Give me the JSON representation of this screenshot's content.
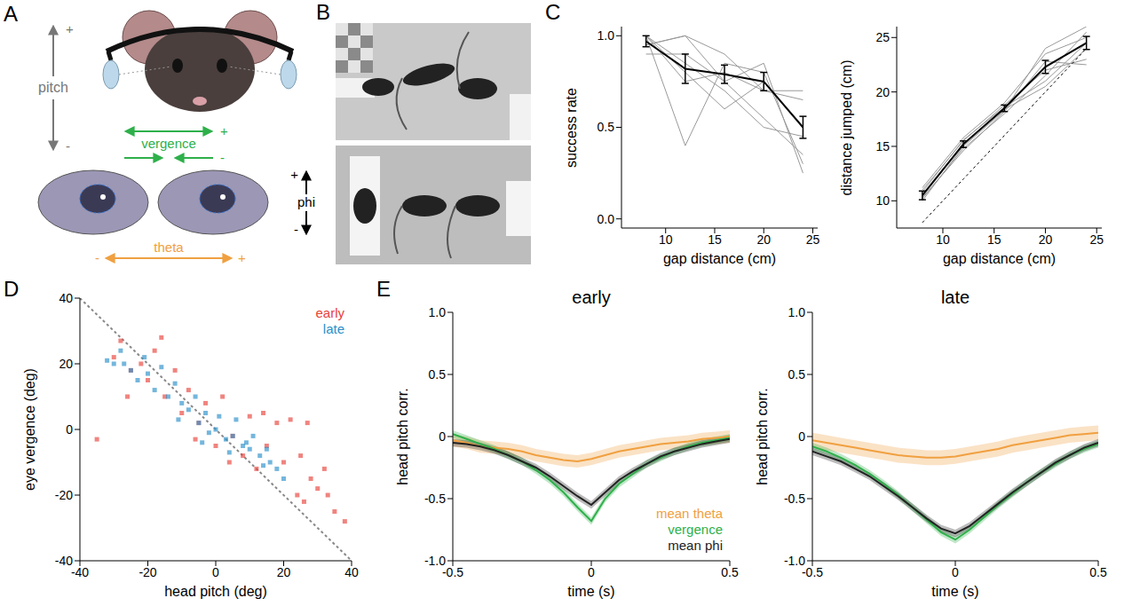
{
  "diagram": {
    "A": {
      "panel_label": "A",
      "labels": {
        "pitch": "pitch",
        "vergence": "vergence",
        "phi": "phi",
        "theta": "theta",
        "plus": "+",
        "minus": "-"
      }
    },
    "B": {
      "panel_label": "B"
    }
  },
  "chart_data": [
    {
      "panel_label": "C",
      "type": "line",
      "x_label": "gap distance (cm)",
      "y_label": "success rate",
      "x": [
        8,
        12,
        16,
        20,
        24
      ],
      "xlim": [
        5.5,
        25.5
      ],
      "xticks": [
        10,
        15,
        20,
        25
      ],
      "ylim": [
        -0.05,
        1.05
      ],
      "yticks": [
        {
          "value": 0,
          "label": "0.0"
        },
        0.5,
        {
          "value": 1,
          "label": "1.0"
        }
      ],
      "series": [
        {
          "color": "#999999",
          "values": [
            1.0,
            0.4,
            0.85,
            0.8,
            0.3
          ]
        },
        {
          "color": "#999999",
          "values": [
            0.95,
            1.0,
            0.9,
            0.7,
            0.65
          ]
        },
        {
          "color": "#999999",
          "values": [
            1.0,
            0.8,
            0.6,
            0.75,
            0.5
          ]
        },
        {
          "color": "#999999",
          "values": [
            0.9,
            0.9,
            0.75,
            0.85,
            0.25
          ]
        },
        {
          "color": "#999999",
          "values": [
            1.0,
            0.75,
            0.8,
            0.7,
            0.7
          ]
        },
        {
          "color": "#999999",
          "values": [
            0.95,
            1.0,
            0.75,
            0.55,
            0.35
          ]
        },
        {
          "color": "#999999",
          "values": [
            1.0,
            0.85,
            0.7,
            0.5,
            0.45
          ]
        },
        {
          "color": "#000000",
          "values": [
            0.97,
            0.82,
            0.79,
            0.75,
            0.5
          ],
          "errors": [
            0.03,
            0.08,
            0.05,
            0.05,
            0.06
          ]
        }
      ]
    },
    {
      "type": "line",
      "x_label": "gap distance (cm)",
      "y_label": "distance jumped (cm)",
      "x": [
        8,
        12,
        16,
        20,
        24
      ],
      "xlim": [
        5.5,
        25.5
      ],
      "xticks": [
        10,
        15,
        20,
        25
      ],
      "ylim": [
        7.5,
        26
      ],
      "yticks": [
        10,
        15,
        20,
        25
      ],
      "series": [
        {
          "color": "#999999",
          "values": [
            10.2,
            14.8,
            18.0,
            21.5,
            25.5
          ]
        },
        {
          "color": "#999999",
          "values": [
            11.0,
            15.5,
            18.8,
            22.0,
            23.0
          ]
        },
        {
          "color": "#999999",
          "values": [
            10.0,
            15.0,
            18.3,
            24.0,
            26.0
          ]
        },
        {
          "color": "#999999",
          "values": [
            10.8,
            15.6,
            18.6,
            21.0,
            24.5
          ]
        },
        {
          "color": "#999999",
          "values": [
            10.3,
            14.6,
            18.2,
            22.8,
            22.5
          ]
        },
        {
          "color": "#999999",
          "values": [
            11.2,
            15.8,
            19.0,
            23.5,
            25.0
          ]
        },
        {
          "color": "#999999",
          "values": [
            10.4,
            15.2,
            18.4,
            20.5,
            24.0
          ]
        },
        {
          "color": "#000000",
          "line_style": "dotted",
          "values": [
            8,
            12,
            16,
            20,
            24
          ]
        },
        {
          "color": "#000000",
          "values": [
            10.5,
            15.2,
            18.5,
            22.3,
            24.5
          ],
          "errors": [
            0.4,
            0.3,
            0.3,
            0.6,
            0.6
          ]
        }
      ]
    },
    {
      "panel_label": "D",
      "type": "scatter",
      "x_label": "head pitch (deg)",
      "y_label": "eye vergence (deg)",
      "xlim": [
        -40,
        40
      ],
      "xticks": [
        -40,
        -20,
        0,
        20,
        40
      ],
      "ylim": [
        -40,
        40
      ],
      "yticks": [
        -40,
        -20,
        0,
        20,
        40
      ],
      "legend": "upper right",
      "reference_line": {
        "x": [
          -40,
          40
        ],
        "y": [
          40,
          -40
        ],
        "line_style": "dotted",
        "color": "#888888"
      },
      "series": [
        {
          "name": "early",
          "color": "#e8423a",
          "marker": "square",
          "x": [
            -30,
            -28,
            -25,
            -22,
            -20,
            -18,
            -15,
            -12,
            -10,
            -8,
            -5,
            -3,
            0,
            2,
            5,
            8,
            10,
            12,
            15,
            18,
            20,
            22,
            24,
            25,
            27,
            28,
            30,
            32,
            35,
            38,
            -35,
            -26,
            -16,
            -6,
            4,
            14,
            26,
            33
          ],
          "y": [
            22,
            27,
            18,
            20,
            15,
            24,
            10,
            18,
            5,
            12,
            2,
            8,
            -5,
            10,
            -2,
            -8,
            4,
            -12,
            -5,
            2,
            -10,
            3,
            -20,
            -8,
            2,
            -15,
            -18,
            -12,
            -25,
            -28,
            -3,
            10,
            28,
            -3,
            -10,
            5,
            -22,
            -20
          ]
        },
        {
          "name": "late",
          "color": "#2a8fc9",
          "marker": "square",
          "x": [
            -32,
            -30,
            -28,
            -25,
            -23,
            -20,
            -18,
            -16,
            -14,
            -12,
            -10,
            -8,
            -6,
            -5,
            -3,
            -2,
            0,
            1,
            3,
            5,
            6,
            8,
            10,
            11,
            13,
            15,
            16,
            18,
            20,
            -27,
            -21,
            -11,
            -4,
            4,
            9,
            14
          ],
          "y": [
            21,
            20,
            24,
            18,
            15,
            17,
            12,
            19,
            10,
            14,
            8,
            6,
            10,
            2,
            5,
            -1,
            0,
            4,
            -3,
            -2,
            3,
            -5,
            -6,
            -2,
            -8,
            -6,
            -10,
            -12,
            -15,
            20,
            22,
            3,
            -4,
            -7,
            -4,
            -11
          ]
        }
      ]
    },
    {
      "panel_label": "E",
      "type": "line",
      "title": "early",
      "x_label": "time (s)",
      "y_label": "head pitch corr.",
      "legend": "lower right",
      "x": [
        -0.5,
        -0.45,
        -0.4,
        -0.35,
        -0.3,
        -0.25,
        -0.2,
        -0.15,
        -0.1,
        -0.05,
        0,
        0.05,
        0.1,
        0.15,
        0.2,
        0.25,
        0.3,
        0.35,
        0.4,
        0.45,
        0.5
      ],
      "xlim": [
        -0.5,
        0.5
      ],
      "xticks": [
        -0.5,
        0,
        0.5
      ],
      "ylim": [
        -1,
        1
      ],
      "yticks": [
        {
          "value": -1,
          "label": "-1.0"
        },
        -0.5,
        0,
        0.5,
        {
          "value": 1,
          "label": "1.0"
        }
      ],
      "series": [
        {
          "name": "mean theta",
          "color": "#f0a040",
          "values": [
            -0.03,
            -0.05,
            -0.08,
            -0.09,
            -0.1,
            -0.12,
            -0.15,
            -0.17,
            -0.19,
            -0.2,
            -0.18,
            -0.15,
            -0.12,
            -0.1,
            -0.08,
            -0.06,
            -0.05,
            -0.04,
            -0.02,
            -0.01,
            0.0
          ],
          "errors": [
            0.05,
            0.05,
            0.05,
            0.05,
            0.05,
            0.05,
            0.05,
            0.05,
            0.05,
            0.05,
            0.05,
            0.05,
            0.05,
            0.05,
            0.05,
            0.05,
            0.05,
            0.05,
            0.05,
            0.05,
            0.05
          ]
        },
        {
          "name": "vergence",
          "color": "#2eb04a",
          "values": [
            0.02,
            -0.02,
            -0.06,
            -0.1,
            -0.15,
            -0.2,
            -0.27,
            -0.35,
            -0.45,
            -0.57,
            -0.68,
            -0.5,
            -0.38,
            -0.3,
            -0.22,
            -0.17,
            -0.12,
            -0.08,
            -0.05,
            -0.03,
            -0.01
          ],
          "errors": [
            0.03,
            0.03,
            0.03,
            0.03,
            0.03,
            0.03,
            0.03,
            0.03,
            0.03,
            0.03,
            0.03,
            0.03,
            0.03,
            0.03,
            0.03,
            0.03,
            0.03,
            0.03,
            0.03,
            0.03,
            0.03
          ]
        },
        {
          "name": "mean phi",
          "color": "#222222",
          "values": [
            -0.05,
            -0.06,
            -0.08,
            -0.11,
            -0.15,
            -0.2,
            -0.25,
            -0.32,
            -0.4,
            -0.48,
            -0.55,
            -0.45,
            -0.35,
            -0.28,
            -0.22,
            -0.16,
            -0.12,
            -0.09,
            -0.06,
            -0.04,
            -0.02
          ],
          "errors": [
            0.03,
            0.03,
            0.03,
            0.03,
            0.03,
            0.03,
            0.03,
            0.03,
            0.03,
            0.03,
            0.03,
            0.03,
            0.03,
            0.03,
            0.03,
            0.03,
            0.03,
            0.03,
            0.03,
            0.03,
            0.03
          ]
        }
      ]
    },
    {
      "type": "line",
      "title": "late",
      "x_label": "time (s)",
      "y_label": "head pitch corr.",
      "x": [
        -0.5,
        -0.45,
        -0.4,
        -0.35,
        -0.3,
        -0.25,
        -0.2,
        -0.15,
        -0.1,
        -0.05,
        0,
        0.05,
        0.1,
        0.15,
        0.2,
        0.25,
        0.3,
        0.35,
        0.4,
        0.45,
        0.5
      ],
      "xlim": [
        -0.5,
        0.5
      ],
      "xticks": [
        -0.5,
        0,
        0.5
      ],
      "ylim": [
        -1,
        1
      ],
      "yticks": [
        {
          "value": -1,
          "label": "-1.0"
        },
        -0.5,
        0,
        0.5,
        {
          "value": 1,
          "label": "1.0"
        }
      ],
      "series": [
        {
          "color": "#f0a040",
          "values": [
            -0.03,
            -0.05,
            -0.07,
            -0.09,
            -0.11,
            -0.13,
            -0.15,
            -0.16,
            -0.17,
            -0.17,
            -0.16,
            -0.14,
            -0.12,
            -0.1,
            -0.07,
            -0.05,
            -0.03,
            -0.01,
            0.01,
            0.02,
            0.03
          ],
          "errors": [
            0.06,
            0.06,
            0.06,
            0.06,
            0.06,
            0.06,
            0.06,
            0.06,
            0.06,
            0.06,
            0.06,
            0.06,
            0.06,
            0.06,
            0.06,
            0.06,
            0.06,
            0.06,
            0.06,
            0.06,
            0.06
          ]
        },
        {
          "color": "#2eb04a",
          "values": [
            -0.08,
            -0.12,
            -0.17,
            -0.23,
            -0.3,
            -0.38,
            -0.47,
            -0.57,
            -0.67,
            -0.77,
            -0.83,
            -0.75,
            -0.65,
            -0.55,
            -0.46,
            -0.37,
            -0.29,
            -0.22,
            -0.15,
            -0.1,
            -0.06
          ],
          "errors": [
            0.03,
            0.03,
            0.03,
            0.03,
            0.03,
            0.03,
            0.03,
            0.03,
            0.03,
            0.03,
            0.03,
            0.03,
            0.03,
            0.03,
            0.03,
            0.03,
            0.03,
            0.03,
            0.03,
            0.03,
            0.03
          ]
        },
        {
          "color": "#222222",
          "values": [
            -0.12,
            -0.16,
            -0.2,
            -0.26,
            -0.32,
            -0.4,
            -0.48,
            -0.57,
            -0.66,
            -0.74,
            -0.78,
            -0.72,
            -0.63,
            -0.54,
            -0.45,
            -0.37,
            -0.29,
            -0.21,
            -0.15,
            -0.09,
            -0.05
          ],
          "errors": [
            0.03,
            0.03,
            0.03,
            0.03,
            0.03,
            0.03,
            0.03,
            0.03,
            0.03,
            0.03,
            0.03,
            0.03,
            0.03,
            0.03,
            0.03,
            0.03,
            0.03,
            0.03,
            0.03,
            0.03,
            0.03
          ]
        }
      ]
    }
  ]
}
